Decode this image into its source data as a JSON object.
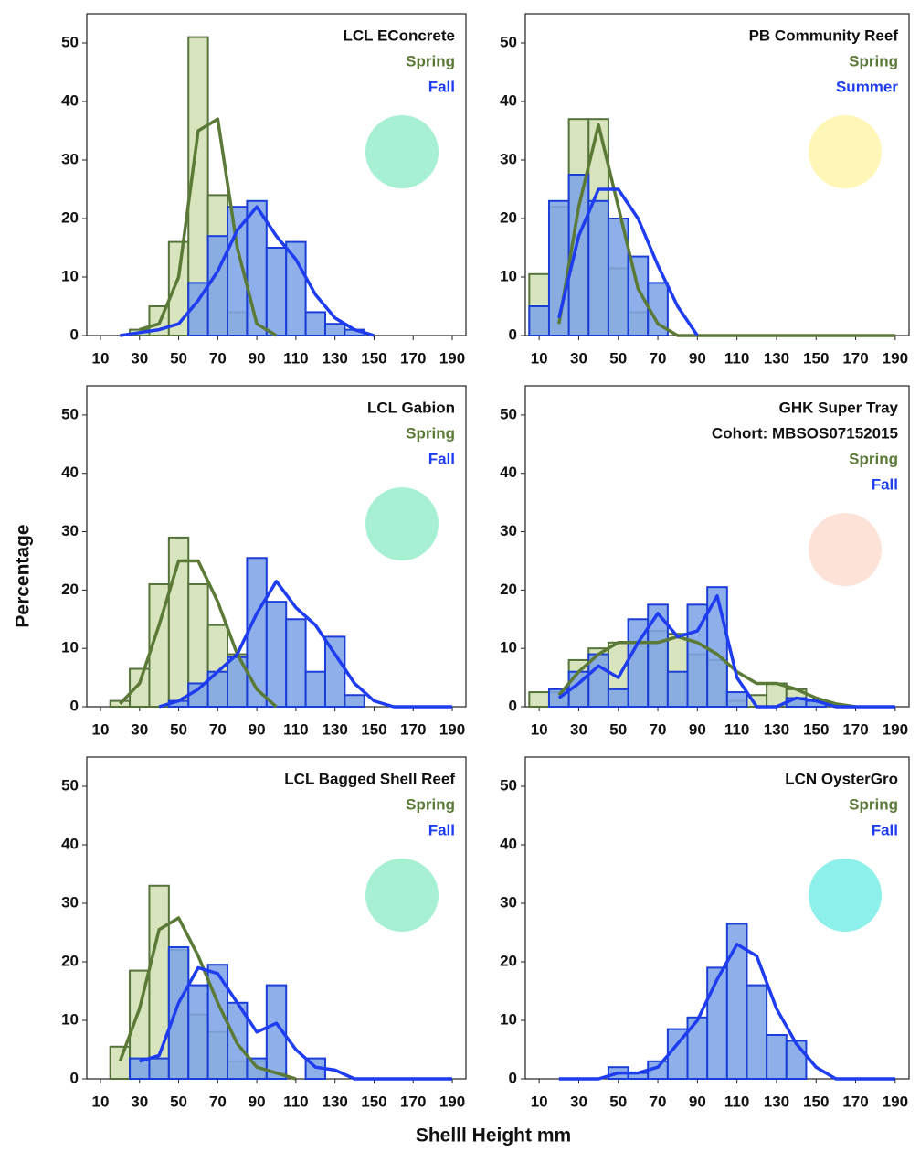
{
  "axis_labels": {
    "y": "Percentage",
    "x": "Shelll Height mm"
  },
  "chart_data": [
    {
      "type": "histogram",
      "title": "LCL EConcrete",
      "dot_color": "#a8f0d4",
      "bins": [
        5,
        15,
        25,
        35,
        45,
        55,
        65,
        75,
        85,
        95,
        105,
        115,
        125,
        135,
        145,
        155,
        165,
        175,
        185,
        195
      ],
      "xlim": [
        3,
        197
      ],
      "ylim": [
        0,
        55
      ],
      "xticks": [
        10,
        30,
        50,
        70,
        90,
        110,
        130,
        150,
        170,
        190
      ],
      "yticks": [
        0,
        10,
        20,
        30,
        40,
        50
      ],
      "series": [
        {
          "name": "Spring",
          "color": "#5b7a37",
          "fill": "#d7e4bd",
          "edge": "#55733a",
          "values": [
            0,
            0,
            1,
            5,
            16,
            51,
            24,
            4,
            0,
            0,
            0,
            0,
            0,
            0,
            0,
            0,
            0,
            0,
            0
          ],
          "curve_x": [
            30,
            40,
            50,
            60,
            70,
            80,
            90,
            100
          ],
          "curve_values": [
            1,
            2,
            10,
            35,
            37,
            15,
            2,
            0
          ]
        },
        {
          "name": "Fall",
          "color": "#1e3cf0",
          "fill": "#7ea4e6",
          "edge": "#1a3ed8",
          "values": [
            0,
            0,
            0,
            0,
            0,
            9,
            17,
            22,
            23,
            15,
            16,
            4,
            2,
            1,
            0,
            0,
            0,
            0,
            0
          ],
          "curve_x": [
            20,
            30,
            40,
            50,
            60,
            70,
            80,
            90,
            100,
            110,
            120,
            130,
            140,
            150
          ],
          "curve_values": [
            0,
            0.5,
            1,
            2,
            6,
            11,
            18,
            22,
            17,
            13,
            7,
            3,
            1,
            0
          ]
        }
      ]
    },
    {
      "type": "histogram",
      "title": "PB Community Reef",
      "dot_color": "#fff6b8",
      "bins": [
        5,
        15,
        25,
        35,
        45,
        55,
        65,
        75,
        85,
        95,
        105,
        115,
        125,
        135,
        145,
        155,
        165,
        175,
        185,
        195
      ],
      "xlim": [
        3,
        197
      ],
      "ylim": [
        0,
        55
      ],
      "xticks": [
        10,
        30,
        50,
        70,
        90,
        110,
        130,
        150,
        170,
        190
      ],
      "yticks": [
        0,
        10,
        20,
        30,
        40,
        50
      ],
      "series": [
        {
          "name": "Spring",
          "color": "#5b7a37",
          "fill": "#d7e4bd",
          "edge": "#55733a",
          "values": [
            10.5,
            22,
            37,
            37,
            11.5,
            4,
            0,
            0,
            0,
            0,
            0,
            0,
            0,
            0,
            0,
            0,
            0,
            0,
            0
          ],
          "curve_x": [
            20,
            30,
            40,
            50,
            60,
            70,
            80,
            190
          ],
          "curve_values": [
            2,
            22,
            36,
            22,
            8,
            2,
            0,
            0
          ]
        },
        {
          "name": "Summer",
          "color": "#1e3cf0",
          "fill": "#7ea4e6",
          "edge": "#1a3ed8",
          "values": [
            5,
            23,
            27.5,
            23,
            20,
            13.5,
            9,
            0,
            0,
            0,
            0,
            0,
            0,
            0,
            0,
            0,
            0,
            0,
            0
          ],
          "curve_x": [
            20,
            30,
            40,
            50,
            60,
            70,
            80,
            90
          ],
          "curve_values": [
            3,
            17,
            25,
            25,
            20,
            12,
            5,
            0
          ]
        }
      ]
    },
    {
      "type": "histogram",
      "title": "LCL Gabion",
      "dot_color": "#a8f0d4",
      "bins": [
        5,
        15,
        25,
        35,
        45,
        55,
        65,
        75,
        85,
        95,
        105,
        115,
        125,
        135,
        145,
        155,
        165,
        175,
        185,
        195
      ],
      "xlim": [
        3,
        197
      ],
      "ylim": [
        0,
        55
      ],
      "xticks": [
        10,
        30,
        50,
        70,
        90,
        110,
        130,
        150,
        170,
        190
      ],
      "yticks": [
        0,
        10,
        20,
        30,
        40,
        50
      ],
      "series": [
        {
          "name": "Spring",
          "color": "#5b7a37",
          "fill": "#d7e4bd",
          "edge": "#55733a",
          "values": [
            0,
            1,
            6.5,
            21,
            29,
            21,
            14,
            9,
            0,
            0,
            0,
            0,
            0,
            0,
            0,
            0,
            0,
            0,
            0
          ],
          "curve_x": [
            20,
            30,
            40,
            50,
            60,
            70,
            80,
            90,
            100
          ],
          "curve_values": [
            0.5,
            4,
            14,
            25,
            25,
            18,
            9,
            3,
            0
          ]
        },
        {
          "name": "Fall",
          "color": "#1e3cf0",
          "fill": "#7ea4e6",
          "edge": "#1a3ed8",
          "values": [
            0,
            0,
            0,
            0,
            1,
            4,
            6,
            8.5,
            25.5,
            18,
            15,
            6,
            12,
            2,
            0,
            0,
            0,
            0,
            0
          ],
          "curve_x": [
            40,
            50,
            60,
            70,
            80,
            90,
            100,
            110,
            120,
            130,
            140,
            150,
            160,
            190
          ],
          "curve_values": [
            0,
            1,
            3,
            6,
            9,
            16,
            21.5,
            17,
            14,
            9,
            4,
            1,
            0,
            0
          ]
        }
      ]
    },
    {
      "type": "histogram",
      "title": "GHK Super Tray",
      "subtitle": "Cohort: MBSOS07152015",
      "dot_color": "#fde2d8",
      "bins": [
        5,
        15,
        25,
        35,
        45,
        55,
        65,
        75,
        85,
        95,
        105,
        115,
        125,
        135,
        145,
        155,
        165,
        175,
        185,
        195
      ],
      "xlim": [
        3,
        197
      ],
      "ylim": [
        0,
        55
      ],
      "xticks": [
        10,
        30,
        50,
        70,
        90,
        110,
        130,
        150,
        170,
        190
      ],
      "yticks": [
        0,
        10,
        20,
        30,
        40,
        50
      ],
      "series": [
        {
          "name": "Spring",
          "color": "#5b7a37",
          "fill": "#d7e4bd",
          "edge": "#55733a",
          "values": [
            2.5,
            2.5,
            8,
            10,
            11,
            11,
            13,
            12.5,
            9,
            8,
            1,
            2,
            4,
            3,
            1,
            0,
            0,
            0,
            0
          ],
          "curve_x": [
            20,
            30,
            40,
            50,
            60,
            70,
            80,
            90,
            100,
            110,
            120,
            130,
            140,
            150,
            160,
            170
          ],
          "curve_values": [
            2,
            6,
            9,
            11,
            11,
            11,
            12,
            11,
            9,
            6,
            4,
            4,
            3,
            1.5,
            0.5,
            0
          ]
        },
        {
          "name": "Fall",
          "color": "#1e3cf0",
          "fill": "#7ea4e6",
          "edge": "#1a3ed8",
          "values": [
            0,
            3,
            6,
            9,
            3,
            15,
            17.5,
            6,
            17.5,
            20.5,
            2.5,
            0,
            0,
            1.5,
            1,
            0,
            0,
            0,
            0
          ],
          "curve_x": [
            20,
            30,
            40,
            50,
            60,
            70,
            80,
            90,
            100,
            110,
            120,
            130,
            140,
            150,
            160,
            190
          ],
          "curve_values": [
            1.5,
            4,
            7,
            5,
            11,
            16,
            12,
            13,
            19,
            5,
            0,
            0,
            1.5,
            1,
            0,
            0
          ]
        }
      ]
    },
    {
      "type": "histogram",
      "title": "LCL Bagged Shell Reef",
      "dot_color": "#a8f0d4",
      "bins": [
        5,
        15,
        25,
        35,
        45,
        55,
        65,
        75,
        85,
        95,
        105,
        115,
        125,
        135,
        145,
        155,
        165,
        175,
        185,
        195
      ],
      "xlim": [
        3,
        197
      ],
      "ylim": [
        0,
        55
      ],
      "xticks": [
        10,
        30,
        50,
        70,
        90,
        110,
        130,
        150,
        170,
        190
      ],
      "yticks": [
        0,
        10,
        20,
        30,
        40,
        50
      ],
      "series": [
        {
          "name": "Spring",
          "color": "#5b7a37",
          "fill": "#d7e4bd",
          "edge": "#55733a",
          "values": [
            0,
            5.5,
            18.5,
            33,
            22,
            11,
            8,
            3,
            3,
            1,
            0,
            0,
            0,
            0,
            0,
            0,
            0,
            0,
            0
          ],
          "curve_x": [
            20,
            30,
            40,
            50,
            60,
            70,
            80,
            90,
            100,
            110
          ],
          "curve_values": [
            3,
            12,
            25.5,
            27.5,
            21,
            13,
            6,
            2,
            1,
            0
          ]
        },
        {
          "name": "Fall",
          "color": "#1e3cf0",
          "fill": "#7ea4e6",
          "edge": "#1a3ed8",
          "values": [
            0,
            0,
            3.5,
            3.5,
            22.5,
            16,
            19.5,
            13,
            3.5,
            16,
            0,
            3.5,
            0,
            0,
            0,
            0,
            0,
            0,
            0
          ],
          "curve_x": [
            30,
            40,
            50,
            60,
            70,
            80,
            90,
            100,
            110,
            120,
            130,
            140,
            190
          ],
          "curve_values": [
            3,
            4,
            13,
            19,
            18,
            13,
            8,
            9.5,
            5,
            2,
            1.5,
            0,
            0
          ]
        }
      ]
    },
    {
      "type": "histogram",
      "title": "LCN OysterGro",
      "dot_color": "#8ef0ea",
      "bins": [
        5,
        15,
        25,
        35,
        45,
        55,
        65,
        75,
        85,
        95,
        105,
        115,
        125,
        135,
        145,
        155,
        165,
        175,
        185,
        195
      ],
      "xlim": [
        3,
        197
      ],
      "ylim": [
        0,
        55
      ],
      "xticks": [
        10,
        30,
        50,
        70,
        90,
        110,
        130,
        150,
        170,
        190
      ],
      "yticks": [
        0,
        10,
        20,
        30,
        40,
        50
      ],
      "series": [
        {
          "name": "Spring",
          "color": "#5b7a37",
          "fill": "#d7e4bd",
          "edge": "#55733a",
          "values": [
            0,
            0,
            0,
            0,
            0,
            0,
            0,
            0,
            0,
            0,
            0,
            0,
            0,
            0,
            0,
            0,
            0,
            0,
            0
          ],
          "curve_x": [],
          "curve_values": []
        },
        {
          "name": "Fall",
          "color": "#1e3cf0",
          "fill": "#7ea4e6",
          "edge": "#1a3ed8",
          "values": [
            0,
            0,
            0,
            0,
            2,
            1,
            3,
            8.5,
            10.5,
            19,
            26.5,
            16,
            7.5,
            6.5,
            0,
            0,
            0,
            0,
            0
          ],
          "curve_x": [
            20,
            40,
            50,
            60,
            70,
            80,
            90,
            100,
            110,
            120,
            130,
            140,
            150,
            160,
            190
          ],
          "curve_values": [
            0,
            0,
            1,
            1,
            2,
            6,
            10,
            17,
            23,
            21,
            12,
            6,
            2,
            0,
            0
          ]
        }
      ]
    }
  ]
}
